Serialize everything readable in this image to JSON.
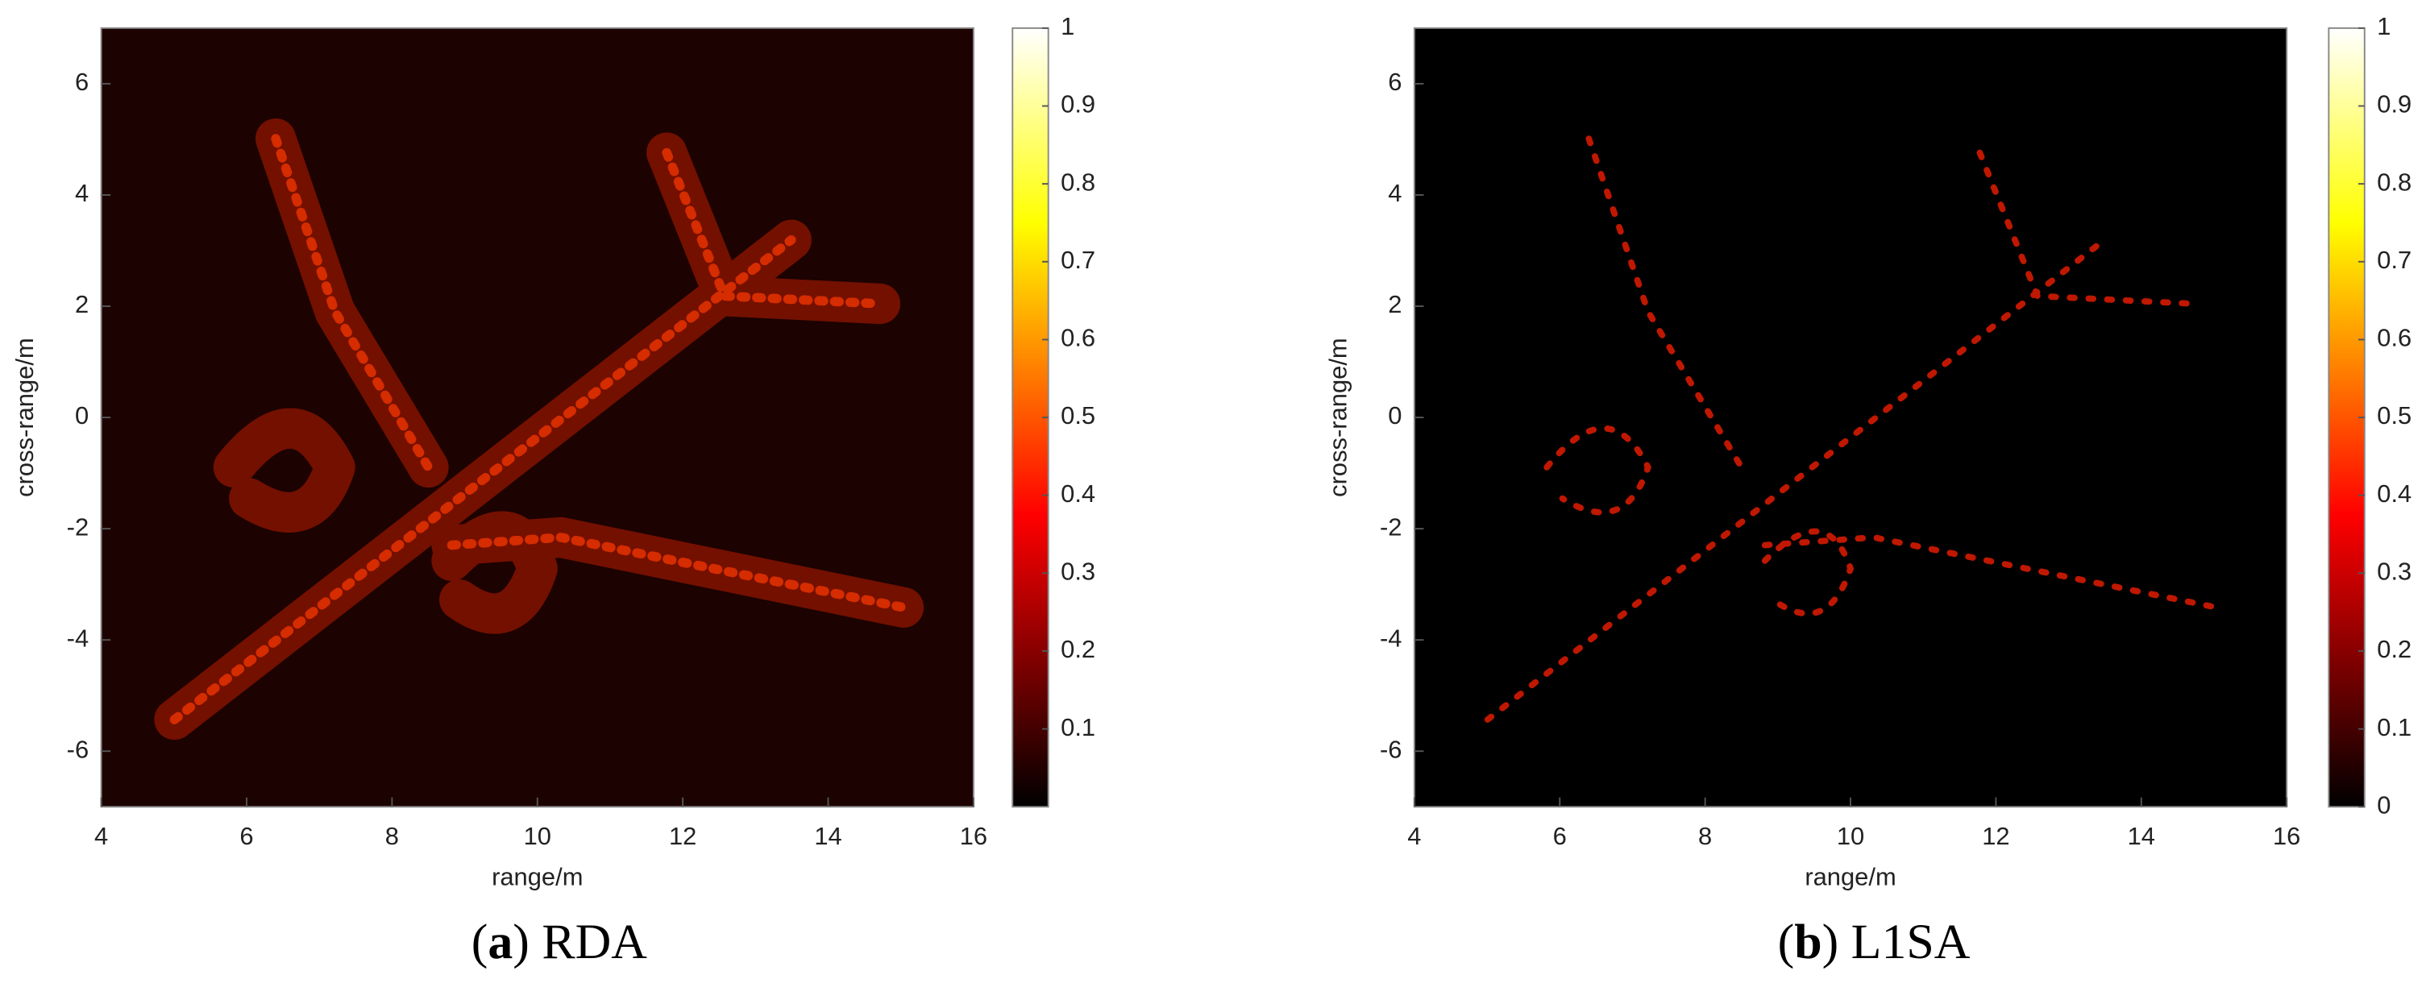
{
  "chart_data": [
    {
      "type": "heatmap",
      "colormap": "hot",
      "xlabel": "range/m",
      "ylabel": "cross-range/m",
      "xlim": [
        4,
        16
      ],
      "ylim": [
        -7,
        7
      ],
      "xticks": [
        4,
        6,
        8,
        10,
        12,
        14,
        16
      ],
      "yticks": [
        -6,
        -4,
        -2,
        0,
        2,
        4,
        6
      ],
      "colorbar": {
        "clim": [
          0,
          1
        ],
        "ticks": [
          0.1,
          0.2,
          0.3,
          0.4,
          0.5,
          0.6,
          0.7,
          0.8,
          0.9,
          1
        ]
      },
      "caption": {
        "label": "a",
        "text": "RDA"
      }
    },
    {
      "type": "heatmap",
      "colormap": "hot",
      "xlabel": "range/m",
      "ylabel": "cross-range/m",
      "xlim": [
        4,
        16
      ],
      "ylim": [
        -7,
        7
      ],
      "xticks": [
        4,
        6,
        8,
        10,
        12,
        14,
        16
      ],
      "yticks": [
        -6,
        -4,
        -2,
        0,
        2,
        4,
        6
      ],
      "colorbar": {
        "clim": [
          0,
          1
        ],
        "ticks": [
          0,
          0.1,
          0.2,
          0.3,
          0.4,
          0.5,
          0.6,
          0.7,
          0.8,
          0.9,
          1
        ]
      },
      "caption": {
        "label": "b",
        "text": "L1SA"
      }
    }
  ]
}
